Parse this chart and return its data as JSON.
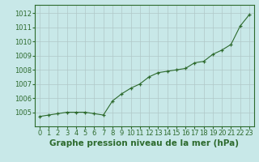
{
  "x": [
    0,
    1,
    2,
    3,
    4,
    5,
    6,
    7,
    8,
    9,
    10,
    11,
    12,
    13,
    14,
    15,
    16,
    17,
    18,
    19,
    20,
    21,
    22,
    23
  ],
  "y": [
    1004.7,
    1004.8,
    1004.9,
    1005.0,
    1005.0,
    1005.0,
    1004.9,
    1004.8,
    1005.8,
    1006.3,
    1006.7,
    1007.0,
    1007.5,
    1007.8,
    1007.9,
    1008.0,
    1008.1,
    1008.5,
    1008.6,
    1009.1,
    1009.4,
    1009.8,
    1011.1,
    1011.9
  ],
  "line_color": "#2d6a2d",
  "marker_color": "#2d6a2d",
  "bg_color": "#c8e8e8",
  "grid_color": "#b0c8c8",
  "axis_color": "#2d6a2d",
  "tick_label_color": "#2d6a2d",
  "title": "Graphe pression niveau de la mer (hPa)",
  "title_color": "#2d6a2d",
  "ylim_min": 1004.0,
  "ylim_max": 1012.6,
  "yticks": [
    1005,
    1006,
    1007,
    1008,
    1009,
    1010,
    1011,
    1012
  ],
  "xticks": [
    0,
    1,
    2,
    3,
    4,
    5,
    6,
    7,
    8,
    9,
    10,
    11,
    12,
    13,
    14,
    15,
    16,
    17,
    18,
    19,
    20,
    21,
    22,
    23
  ],
  "title_fontsize": 7.5,
  "tick_fontsize": 6.0
}
